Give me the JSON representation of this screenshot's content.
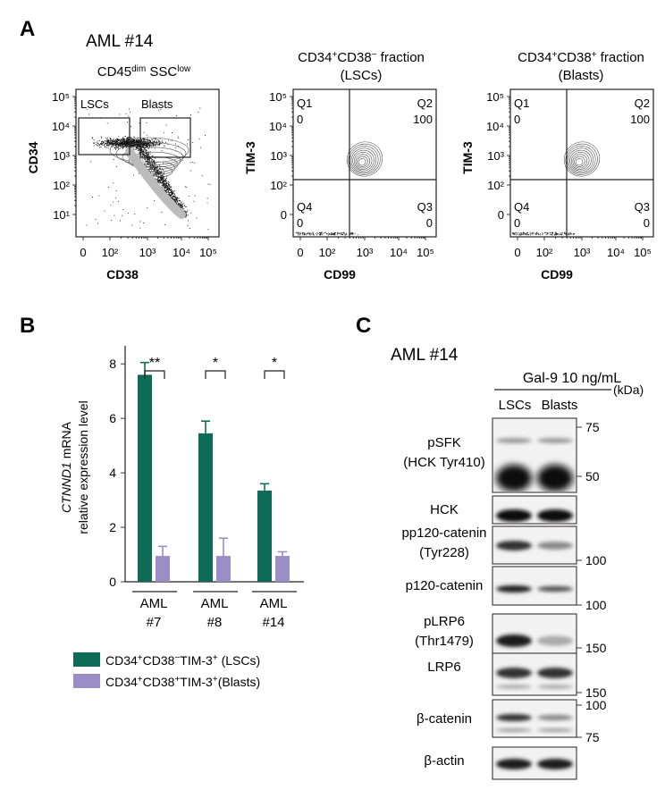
{
  "panel_A": {
    "letter": "A",
    "sample": "AML #14",
    "plots": [
      {
        "title_lines": [
          "CD45dim SSClow"
        ],
        "title_parts": [
          {
            "t": "CD45"
          },
          {
            "t": "dim",
            "sup": true
          },
          {
            "t": " SSC"
          },
          {
            "t": "low",
            "sup": true
          }
        ],
        "xlabel": "CD38",
        "ylabel": "CD34",
        "xticks": [
          "0",
          "10²",
          "10³",
          "10⁴",
          "10⁵"
        ],
        "yticks": [
          "10⁵",
          "10⁴",
          "10³",
          "10²",
          "10¹"
        ],
        "gates": [
          "LSCs",
          "Blasts"
        ]
      },
      {
        "title_parts": [
          {
            "t": "CD34"
          },
          {
            "t": "+",
            "sup": true
          },
          {
            "t": "CD38"
          },
          {
            "t": "−",
            "sup": true
          },
          {
            "t": " fraction"
          }
        ],
        "subtitle": "(LSCs)",
        "xlabel": "CD99",
        "ylabel": "TIM-3",
        "xticks": [
          "0",
          "10²",
          "10³",
          "10⁴",
          "10⁵"
        ],
        "yticks": [
          "10⁵",
          "10⁴",
          "10³",
          "10²",
          "0"
        ],
        "quadrants": [
          {
            "name": "Q1",
            "value": "0"
          },
          {
            "name": "Q2",
            "value": "100"
          },
          {
            "name": "Q4",
            "value": "0"
          },
          {
            "name": "Q3",
            "value": "0"
          }
        ]
      },
      {
        "title_parts": [
          {
            "t": "CD34"
          },
          {
            "t": "+",
            "sup": true
          },
          {
            "t": "CD38"
          },
          {
            "t": "+",
            "sup": true
          },
          {
            "t": " fraction"
          }
        ],
        "subtitle": "(Blasts)",
        "xlabel": "CD99",
        "ylabel": "TIM-3",
        "xticks": [
          "0",
          "10²",
          "10³",
          "10⁴",
          "10⁵"
        ],
        "yticks": [
          "10⁵",
          "10⁴",
          "10³",
          "10²",
          "0"
        ],
        "quadrants": [
          {
            "name": "Q1",
            "value": "0"
          },
          {
            "name": "Q2",
            "value": "100"
          },
          {
            "name": "Q4",
            "value": "0"
          },
          {
            "name": "Q3",
            "value": "0"
          }
        ]
      }
    ]
  },
  "panel_B": {
    "letter": "B",
    "ylabel_gene": "CTNND1",
    "ylabel_rest": " mRNA",
    "ylabel_line2": "relative expression level",
    "legend": [
      {
        "parts": [
          {
            "t": "CD34"
          },
          {
            "t": "+",
            "sup": true
          },
          {
            "t": "CD38"
          },
          {
            "t": "−",
            "sup": true
          },
          {
            "t": "TIM-3"
          },
          {
            "t": "+",
            "sup": true
          },
          {
            "t": " (LSCs)"
          }
        ],
        "color": "#0e6b55"
      },
      {
        "parts": [
          {
            "t": "CD34"
          },
          {
            "t": "+",
            "sup": true
          },
          {
            "t": "CD38"
          },
          {
            "t": "+",
            "sup": true
          },
          {
            "t": "TIM-3"
          },
          {
            "t": "+",
            "sup": true
          },
          {
            "t": "(Blasts)"
          }
        ],
        "color": "#9b8ec7"
      }
    ],
    "group_labels": [
      [
        "AML",
        "#7"
      ],
      [
        "AML",
        "#8"
      ],
      [
        "AML",
        "#14"
      ]
    ],
    "significance": [
      "**",
      "*",
      "*"
    ]
  },
  "chart_data": {
    "type": "bar",
    "categories": [
      "AML #7",
      "AML #8",
      "AML #14"
    ],
    "series": [
      {
        "name": "CD34+CD38−TIM-3+ (LSCs)",
        "values": [
          7.6,
          5.45,
          3.35
        ],
        "errors": [
          0.45,
          0.45,
          0.25
        ],
        "color": "#0e6b55"
      },
      {
        "name": "CD34+CD38+TIM-3+(Blasts)",
        "values": [
          0.95,
          0.95,
          0.95
        ],
        "errors": [
          0.35,
          0.65,
          0.15
        ],
        "color": "#9b8ec7"
      }
    ],
    "ylim": [
      0,
      8.4
    ],
    "yticks": [
      0,
      2,
      4,
      6,
      8
    ]
  },
  "panel_C": {
    "letter": "C",
    "sample": "AML #14",
    "treatment": "Gal-9 10 ng/mL",
    "lanes": [
      "LSCs",
      "Blasts"
    ],
    "unit": "(kDa)",
    "blots": [
      {
        "label_lines": [
          "pSFK",
          "(HCK Tyr410)"
        ],
        "markers": [
          "75",
          "50"
        ]
      },
      {
        "label_lines": [
          "HCK"
        ],
        "markers": []
      },
      {
        "label_lines": [
          "pp120-catenin",
          "(Tyr228)"
        ],
        "markers": [
          "100"
        ]
      },
      {
        "label_lines": [
          "p120-catenin"
        ],
        "markers": [
          "100"
        ]
      },
      {
        "label_lines": [
          "pLRP6",
          "(Thr1479)"
        ],
        "markers": [
          "150"
        ]
      },
      {
        "label_lines": [
          "LRP6"
        ],
        "markers": [
          "150"
        ]
      },
      {
        "label_lines": [
          "β-catenin"
        ],
        "markers": [
          "100",
          "75"
        ]
      },
      {
        "label_lines": [
          "β-actin"
        ],
        "markers": []
      }
    ]
  }
}
